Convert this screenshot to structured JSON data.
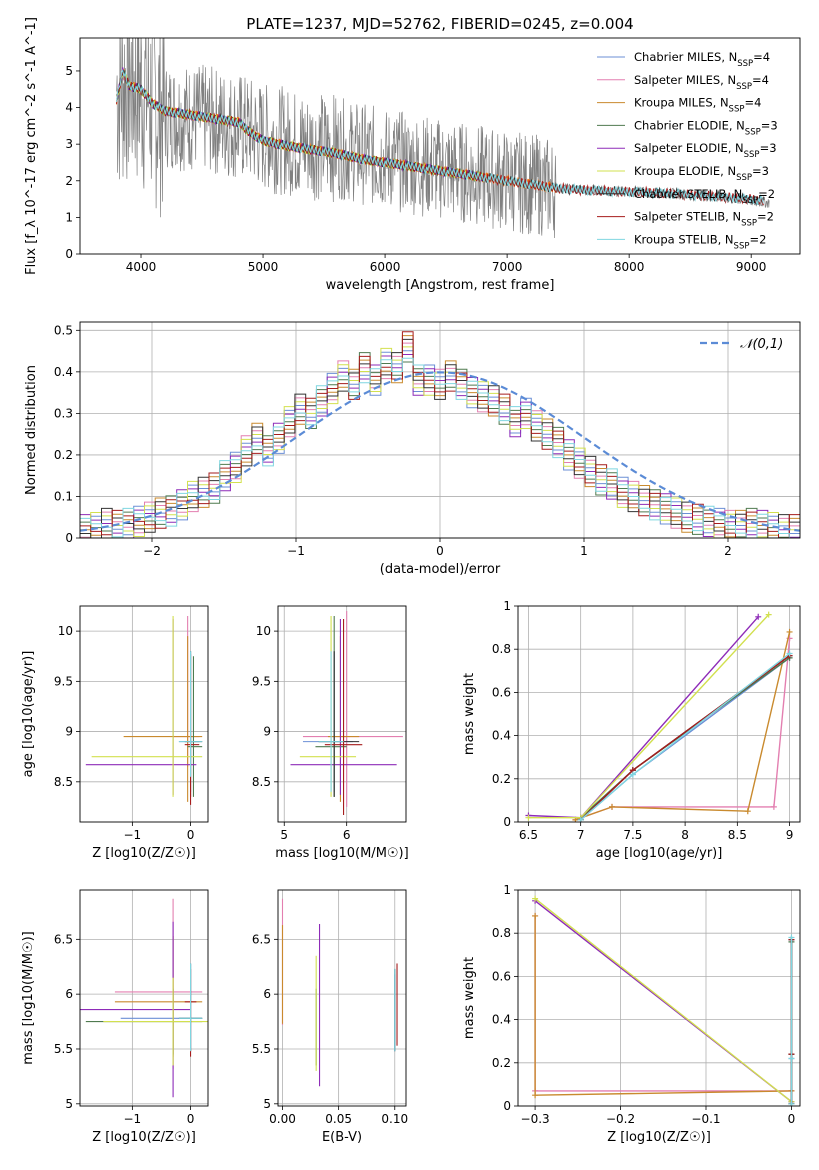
{
  "figure": {
    "title": "PLATE=1237, MJD=52762, FIBERID=0245, z=0.004"
  },
  "series_styles": [
    {
      "name": "Chabrier MILES",
      "nssp": "4",
      "color": "#6b8fd6"
    },
    {
      "name": "Salpeter MILES",
      "nssp": "4",
      "color": "#e37fb0"
    },
    {
      "name": "Kroupa MILES",
      "nssp": "4",
      "color": "#c98a2e"
    },
    {
      "name": "Chabrier ELODIE",
      "nssp": "3",
      "color": "#4f7a4f"
    },
    {
      "name": "Salpeter ELODIE",
      "nssp": "3",
      "color": "#8e2bb8"
    },
    {
      "name": "Kroupa ELODIE",
      "nssp": "3",
      "color": "#d2e04f"
    },
    {
      "name": "Chabrier STELIB",
      "nssp": "2",
      "color": "#333333"
    },
    {
      "name": "Salpeter STELIB",
      "nssp": "2",
      "color": "#a61c1c"
    },
    {
      "name": "Kroupa STELIB",
      "nssp": "2",
      "color": "#7fd6e0"
    }
  ],
  "data_color": "#808080",
  "highlight_color": "#f07a1e",
  "normal_color": "#5b8bd6",
  "chart_data": [
    {
      "id": "spectrum",
      "type": "line",
      "xlabel": "wavelength [Angstrom, rest frame]",
      "ylabel": "Flux [f_λ 10^-17 erg cm^-2 s^-1 A^-1]",
      "xlim": [
        3500,
        9400
      ],
      "ylim": [
        0,
        5.9
      ],
      "xticks": [
        4000,
        5000,
        6000,
        7000,
        8000,
        9000
      ],
      "yticks": [
        0,
        1,
        2,
        3,
        4,
        5
      ],
      "observed_continuum": {
        "x": [
          3800,
          3900,
          4000,
          4200,
          4500,
          4800,
          5000,
          5300,
          5600,
          6000,
          6500,
          7000,
          7400,
          7800,
          8200,
          8600,
          9000,
          9150
        ],
        "y": [
          4.5,
          4.8,
          4.6,
          3.8,
          3.7,
          3.5,
          3.2,
          3.0,
          2.9,
          2.6,
          2.3,
          2.0,
          1.8,
          1.72,
          1.68,
          1.6,
          1.45,
          1.4
        ]
      },
      "model_continuum": {
        "x": [
          3800,
          3850,
          3900,
          4000,
          4100,
          4200,
          4400,
          4600,
          4800,
          4900,
          5000,
          5200,
          5400,
          5600,
          5800,
          6000,
          6200,
          6400,
          6600,
          6800,
          7000,
          7200,
          7400,
          7600,
          7800,
          8000,
          8200,
          8400,
          8600,
          8800,
          9000,
          9100
        ],
        "y": [
          4.2,
          5.0,
          4.6,
          4.5,
          4.1,
          3.9,
          3.8,
          3.7,
          3.6,
          3.3,
          3.1,
          2.95,
          2.85,
          2.75,
          2.6,
          2.5,
          2.4,
          2.3,
          2.2,
          2.1,
          2.0,
          1.9,
          1.8,
          1.75,
          1.72,
          1.7,
          1.68,
          1.64,
          1.6,
          1.55,
          1.5,
          1.45
        ]
      },
      "model_end": {
        "MILES": 7400,
        "ELODIE": 6800,
        "STELIB": 9100
      }
    },
    {
      "id": "residual-histogram",
      "type": "bar",
      "xlabel": "(data-model)/error",
      "ylabel": "Normed distribution",
      "xlim": [
        -2.5,
        2.5
      ],
      "ylim": [
        0,
        0.52
      ],
      "xticks": [
        -2,
        -1,
        0,
        1,
        2
      ],
      "yticks": [
        0.0,
        0.1,
        0.2,
        0.3,
        0.4,
        0.5
      ],
      "bin_width": 0.1,
      "bin_start": -2.5,
      "values": [
        0.02,
        0.025,
        0.035,
        0.03,
        0.035,
        0.04,
        0.05,
        0.06,
        0.065,
        0.08,
        0.1,
        0.11,
        0.12,
        0.15,
        0.17,
        0.21,
        0.24,
        0.21,
        0.24,
        0.28,
        0.31,
        0.3,
        0.33,
        0.36,
        0.39,
        0.37,
        0.41,
        0.38,
        0.42,
        0.41,
        0.46,
        0.38,
        0.38,
        0.37,
        0.39,
        0.37,
        0.35,
        0.34,
        0.33,
        0.31,
        0.28,
        0.3,
        0.27,
        0.25,
        0.23,
        0.2,
        0.18,
        0.16,
        0.14,
        0.13,
        0.11,
        0.1,
        0.09,
        0.08,
        0.07,
        0.06,
        0.05,
        0.045,
        0.04,
        0.035,
        0.03,
        0.03,
        0.035,
        0.03,
        0.025,
        0.02,
        0.02
      ],
      "normal_label": "𝒩(0,1)"
    },
    {
      "id": "age-vs-Z",
      "type": "scatter",
      "xlabel": "Z [log10(Z/Z☉)]",
      "ylabel": "age [log10(age/yr)]",
      "xlim": [
        -1.9,
        0.3
      ],
      "ylim": [
        8.1,
        10.25
      ],
      "xticks": [
        -1,
        0
      ],
      "yticks": [
        8.5,
        9.0,
        9.5,
        10.0
      ],
      "points": [
        {
          "series": 0,
          "x": 0.0,
          "y": 8.9,
          "xerr": [
            0.2,
            0.15
          ],
          "yerr": [
            0.5,
            0.9
          ]
        },
        {
          "series": 1,
          "x": -0.05,
          "y": 8.95,
          "xerr": [
            0.25,
            0.2
          ],
          "yerr": [
            0.3,
            1.2
          ]
        },
        {
          "series": 2,
          "x": -0.05,
          "y": 8.95,
          "xerr": [
            1.1,
            0.25
          ],
          "yerr": [
            0.65,
            1.0
          ]
        },
        {
          "series": 3,
          "x": 0.05,
          "y": 8.85,
          "xerr": [
            0.1,
            0.15
          ],
          "yerr": [
            0.5,
            0.9
          ]
        },
        {
          "series": 4,
          "x": -0.3,
          "y": 8.67,
          "xerr": [
            1.5,
            0.4
          ],
          "yerr": [
            0.3,
            1.45
          ]
        },
        {
          "series": 5,
          "x": -0.3,
          "y": 8.75,
          "xerr": [
            1.4,
            0.5
          ],
          "yerr": [
            0.4,
            1.4
          ]
        },
        {
          "series": 6,
          "x": 0.0,
          "y": 8.9,
          "xerr": [
            0.1,
            0.2
          ],
          "yerr": [
            0.55,
            0.9
          ]
        },
        {
          "series": 7,
          "x": 0.0,
          "y": 8.87,
          "xerr": [
            0.1,
            0.15
          ],
          "yerr": [
            0.6,
            0.9
          ]
        },
        {
          "series": 8,
          "x": 0.0,
          "y": 8.9,
          "xerr": [
            0.2,
            0.2
          ],
          "yerr": [
            0.35,
            0.9
          ]
        }
      ]
    },
    {
      "id": "age-vs-mass",
      "type": "scatter",
      "xlabel": "mass [log10(M/M☉)]",
      "ylabel": "",
      "xlim": [
        4.9,
        6.95
      ],
      "ylim": [
        8.1,
        10.25
      ],
      "xticks": [
        5,
        6
      ],
      "yticks": [
        8.5,
        9.0,
        9.5,
        10.0
      ],
      "points": [
        {
          "series": 0,
          "x": 5.8,
          "y": 8.9,
          "xerr": [
            0.5,
            0.3
          ],
          "yerr": [
            0.5,
            0.9
          ]
        },
        {
          "series": 1,
          "x": 6.0,
          "y": 8.95,
          "xerr": [
            0.7,
            0.9
          ],
          "yerr": [
            0.7,
            1.25
          ]
        },
        {
          "series": 2,
          "x": 5.9,
          "y": 8.95,
          "xerr": [
            0.2,
            0.3
          ],
          "yerr": [
            0.65,
            1.0
          ]
        },
        {
          "series": 3,
          "x": 5.8,
          "y": 8.85,
          "xerr": [
            0.3,
            0.2
          ],
          "yerr": [
            0.5,
            1.3
          ]
        },
        {
          "series": 4,
          "x": 5.9,
          "y": 8.67,
          "xerr": [
            0.8,
            0.9
          ],
          "yerr": [
            0.3,
            1.45
          ]
        },
        {
          "series": 5,
          "x": 5.75,
          "y": 8.75,
          "xerr": [
            0.5,
            0.4
          ],
          "yerr": [
            0.4,
            1.4
          ]
        },
        {
          "series": 6,
          "x": 5.8,
          "y": 8.9,
          "xerr": [
            0.25,
            0.4
          ],
          "yerr": [
            0.55,
            0.9
          ]
        },
        {
          "series": 7,
          "x": 5.95,
          "y": 8.87,
          "xerr": [
            0.3,
            0.3
          ],
          "yerr": [
            0.7,
            1.25
          ]
        },
        {
          "series": 8,
          "x": 5.75,
          "y": 8.9,
          "xerr": [
            0.2,
            0.2
          ],
          "yerr": [
            0.5,
            0.9
          ]
        }
      ]
    },
    {
      "id": "massweight-vs-age",
      "type": "line",
      "xlabel": "age [log10(age/yr)]",
      "ylabel": "mass weight",
      "xlim": [
        6.4,
        9.1
      ],
      "ylim": [
        0.0,
        1.0
      ],
      "xticks": [
        6.5,
        7.0,
        7.5,
        8.0,
        8.5,
        9.0
      ],
      "yticks": [
        0.0,
        0.2,
        0.4,
        0.6,
        0.8,
        1.0
      ],
      "series": [
        {
          "series": 0,
          "x": [
            7.0,
            7.5,
            9.0
          ],
          "y": [
            0.01,
            0.22,
            0.76
          ]
        },
        {
          "series": 1,
          "x": [
            6.95,
            7.3,
            8.85,
            9.0
          ],
          "y": [
            0.01,
            0.07,
            0.07,
            0.85
          ]
        },
        {
          "series": 2,
          "x": [
            6.95,
            7.3,
            8.6,
            9.0
          ],
          "y": [
            0.01,
            0.07,
            0.05,
            0.88
          ]
        },
        {
          "series": 3,
          "x": [
            7.0,
            7.5,
            9.0
          ],
          "y": [
            0.02,
            0.24,
            0.76
          ]
        },
        {
          "series": 4,
          "x": [
            6.5,
            7.0,
            8.7
          ],
          "y": [
            0.03,
            0.02,
            0.95
          ]
        },
        {
          "series": 5,
          "x": [
            6.5,
            7.0,
            8.8
          ],
          "y": [
            0.02,
            0.02,
            0.96
          ]
        },
        {
          "series": 6,
          "x": [
            7.0,
            7.5,
            9.0
          ],
          "y": [
            0.01,
            0.24,
            0.77
          ]
        },
        {
          "series": 7,
          "x": [
            7.0,
            7.5,
            9.0
          ],
          "y": [
            0.01,
            0.24,
            0.77
          ]
        },
        {
          "series": 8,
          "x": [
            7.0,
            7.5,
            9.0
          ],
          "y": [
            0.01,
            0.22,
            0.78
          ]
        }
      ]
    },
    {
      "id": "mass-vs-Z",
      "type": "scatter",
      "xlabel": "Z [log10(Z/Z☉)]",
      "ylabel": "mass [log10(M/M☉)]",
      "xlim": [
        -1.9,
        0.3
      ],
      "ylim": [
        4.98,
        6.95
      ],
      "xticks": [
        -1,
        0
      ],
      "yticks": [
        5.0,
        5.5,
        6.0,
        6.5
      ],
      "points": [
        {
          "series": 0,
          "x": 0.0,
          "y": 5.78,
          "xerr": [
            1.2,
            0.2
          ],
          "yerr": [
            0.3,
            0.5
          ]
        },
        {
          "series": 1,
          "x": -0.3,
          "y": 6.02,
          "xerr": [
            1.0,
            0.5
          ],
          "yerr": [
            0.7,
            0.85
          ]
        },
        {
          "series": 2,
          "x": -0.3,
          "y": 5.93,
          "xerr": [
            1.0,
            0.5
          ],
          "yerr": [
            0.5,
            0.6
          ]
        },
        {
          "series": 3,
          "x": -0.3,
          "y": 5.75,
          "xerr": [
            1.5,
            0.5
          ],
          "yerr": [
            0.3,
            0.3
          ]
        },
        {
          "series": 4,
          "x": -0.3,
          "y": 5.86,
          "xerr": [
            1.6,
            0.3
          ],
          "yerr": [
            0.8,
            0.8
          ]
        },
        {
          "series": 5,
          "x": -0.3,
          "y": 5.75,
          "xerr": [
            1.2,
            0.6
          ],
          "yerr": [
            0.4,
            0.4
          ]
        },
        {
          "series": 6,
          "x": 0.0,
          "y": 5.78,
          "xerr": [
            0.2,
            0.2
          ],
          "yerr": [
            0.3,
            0.5
          ]
        },
        {
          "series": 7,
          "x": 0.0,
          "y": 5.93,
          "xerr": [
            0.1,
            0.1
          ],
          "yerr": [
            0.5,
            0.3
          ]
        },
        {
          "series": 8,
          "x": 0.0,
          "y": 5.78,
          "xerr": [
            0.2,
            0.2
          ],
          "yerr": [
            0.3,
            0.5
          ]
        }
      ]
    },
    {
      "id": "mass-vs-EBV",
      "type": "scatter",
      "xlabel": "E(B-V)",
      "ylabel": "",
      "xlim": [
        -0.004,
        0.11
      ],
      "ylim": [
        4.98,
        6.95
      ],
      "xticks": [
        0.0,
        0.05,
        0.1
      ],
      "yticks": [
        5.0,
        5.5,
        6.0,
        6.5
      ],
      "tick_labels": [
        "0.00",
        "0.05",
        "0.10"
      ],
      "points": [
        {
          "series": 0,
          "x": 0.1,
          "y": 5.78,
          "xerr": [
            0,
            0
          ],
          "yerr": [
            0.3,
            0.4
          ]
        },
        {
          "series": 1,
          "x": 0.0,
          "y": 6.02,
          "xerr": [
            0,
            0
          ],
          "yerr": [
            0.3,
            0.85
          ]
        },
        {
          "series": 2,
          "x": 0.0,
          "y": 5.93,
          "xerr": [
            0,
            0
          ],
          "yerr": [
            0.2,
            0.7
          ]
        },
        {
          "series": 3,
          "x": 0.03,
          "y": 5.75,
          "xerr": [
            0,
            0
          ],
          "yerr": [
            0.4,
            0.3
          ]
        },
        {
          "series": 4,
          "x": 0.033,
          "y": 5.86,
          "xerr": [
            0,
            0
          ],
          "yerr": [
            0.7,
            0.78
          ]
        },
        {
          "series": 5,
          "x": 0.03,
          "y": 5.75,
          "xerr": [
            0,
            0
          ],
          "yerr": [
            0.45,
            0.6
          ]
        },
        {
          "series": 6,
          "x": 0.1,
          "y": 5.78,
          "xerr": [
            0,
            0
          ],
          "yerr": [
            0.3,
            0.45
          ]
        },
        {
          "series": 7,
          "x": 0.102,
          "y": 5.93,
          "xerr": [
            0,
            0
          ],
          "yerr": [
            0.4,
            0.35
          ]
        },
        {
          "series": 8,
          "x": 0.1,
          "y": 5.78,
          "xerr": [
            0,
            0
          ],
          "yerr": [
            0.3,
            0.45
          ]
        }
      ]
    },
    {
      "id": "massweight-vs-Z",
      "type": "line",
      "xlabel": "Z [log10(Z/Z☉)]",
      "ylabel": "mass weight",
      "xlim": [
        -0.32,
        0.01
      ],
      "ylim": [
        0.0,
        1.0
      ],
      "xticks": [
        -0.3,
        -0.2,
        -0.1,
        0.0
      ],
      "yticks": [
        0.0,
        0.2,
        0.4,
        0.6,
        0.8,
        1.0
      ],
      "series": [
        {
          "series": 0,
          "x": [
            0.0,
            0.0,
            0.0
          ],
          "y": [
            0.01,
            0.22,
            0.77
          ]
        },
        {
          "series": 1,
          "x": [
            -0.3,
            -0.3,
            0.0
          ],
          "y": [
            0.88,
            0.07,
            0.07
          ]
        },
        {
          "series": 2,
          "x": [
            -0.3,
            -0.3,
            0.0
          ],
          "y": [
            0.88,
            0.05,
            0.07
          ]
        },
        {
          "series": 3,
          "x": [
            0.0,
            0.0,
            0.0
          ],
          "y": [
            0.02,
            0.24,
            0.76
          ]
        },
        {
          "series": 4,
          "x": [
            -0.3,
            0.0
          ],
          "y": [
            0.95,
            0.02
          ]
        },
        {
          "series": 5,
          "x": [
            -0.3,
            0.0
          ],
          "y": [
            0.96,
            0.02
          ]
        },
        {
          "series": 6,
          "x": [
            0.0,
            0.0,
            0.0
          ],
          "y": [
            0.01,
            0.24,
            0.77
          ]
        },
        {
          "series": 7,
          "x": [
            0.0,
            0.0,
            0.0
          ],
          "y": [
            0.01,
            0.24,
            0.77
          ]
        },
        {
          "series": 8,
          "x": [
            0.0,
            0.0,
            0.0
          ],
          "y": [
            0.01,
            0.22,
            0.78
          ]
        }
      ]
    }
  ]
}
